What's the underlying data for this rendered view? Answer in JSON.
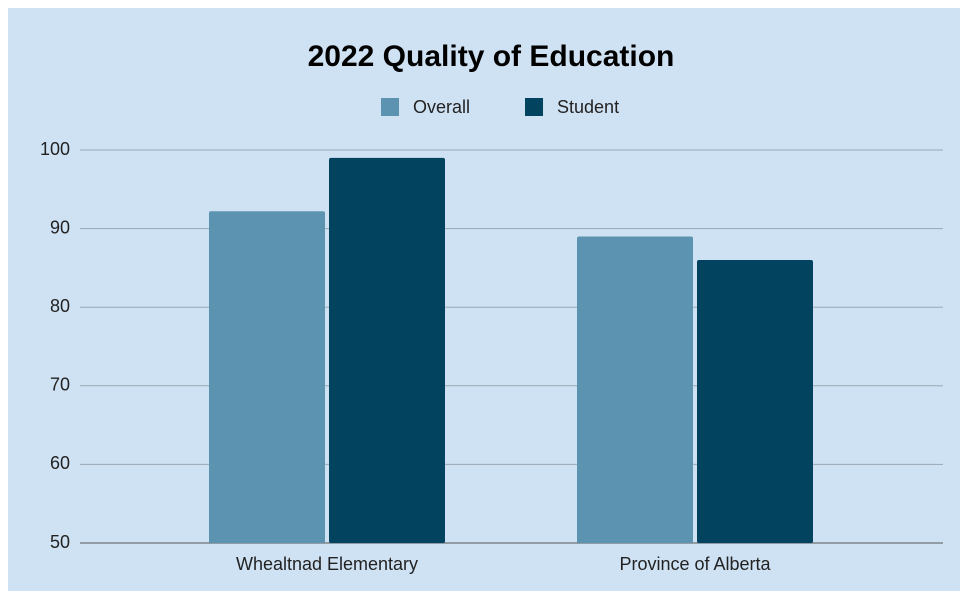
{
  "chart_data": {
    "type": "bar",
    "title": "2022 Quality of Education",
    "categories": [
      "Whealtnad Elementary",
      "Province of Alberta"
    ],
    "series": [
      {
        "name": "Overall",
        "color": "#5b93b0",
        "values": [
          92.2,
          89
        ]
      },
      {
        "name": "Student",
        "color": "#02435f",
        "values": [
          99,
          86
        ]
      }
    ],
    "ylim": [
      50,
      100
    ],
    "yticks": [
      50,
      60,
      70,
      80,
      90,
      100
    ],
    "grid": true,
    "legend": "top"
  }
}
